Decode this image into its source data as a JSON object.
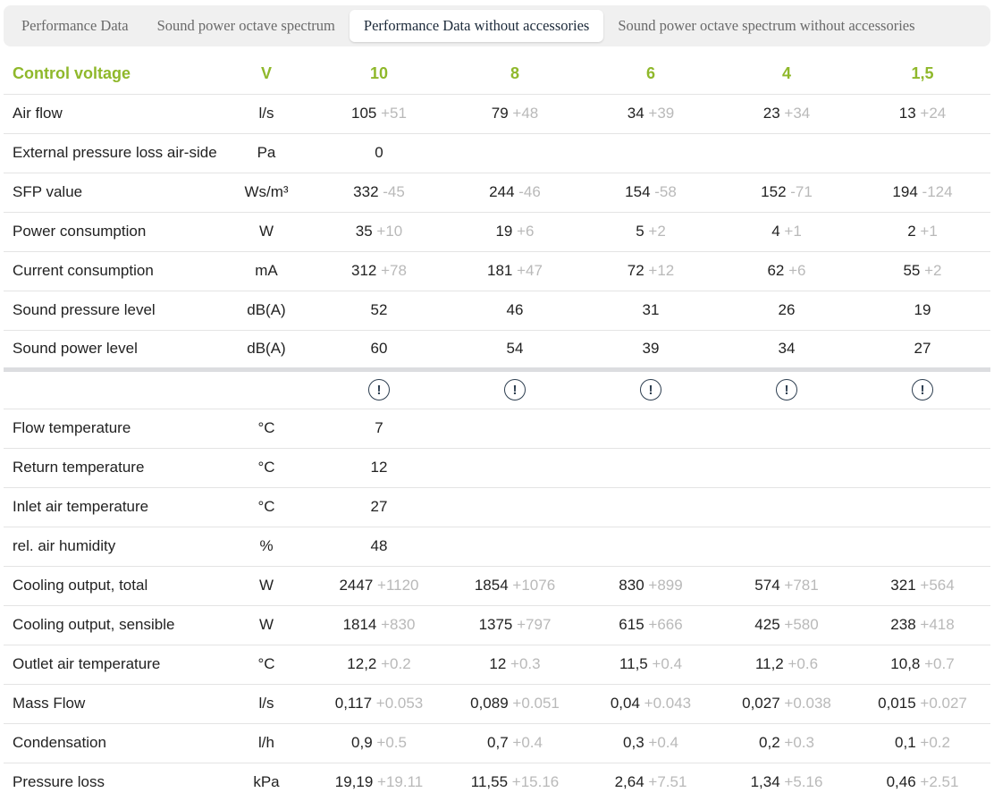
{
  "tabs": [
    {
      "label": "Performance Data",
      "active": false
    },
    {
      "label": "Sound power octave spectrum",
      "active": false
    },
    {
      "label": "Performance Data without accessories",
      "active": true
    },
    {
      "label": "Sound power octave spectrum without accessories",
      "active": false
    }
  ],
  "header": {
    "label": "Control voltage",
    "unit": "V",
    "values": [
      "10",
      "8",
      "6",
      "4",
      "1,5"
    ]
  },
  "group1": [
    {
      "label": "Air flow",
      "unit": "l/s",
      "cells": [
        {
          "v": "105",
          "d": "+51"
        },
        {
          "v": "79",
          "d": "+48"
        },
        {
          "v": "34",
          "d": "+39"
        },
        {
          "v": "23",
          "d": "+34"
        },
        {
          "v": "13",
          "d": "+24"
        }
      ]
    },
    {
      "label": "External pressure loss air-side",
      "unit": "Pa",
      "cells": [
        {
          "v": "0",
          "d": ""
        },
        {
          "v": "",
          "d": ""
        },
        {
          "v": "",
          "d": ""
        },
        {
          "v": "",
          "d": ""
        },
        {
          "v": "",
          "d": ""
        }
      ]
    },
    {
      "label": "SFP value",
      "unit": "Ws/m³",
      "cells": [
        {
          "v": "332",
          "d": "-45"
        },
        {
          "v": "244",
          "d": "-46"
        },
        {
          "v": "154",
          "d": "-58"
        },
        {
          "v": "152",
          "d": "-71"
        },
        {
          "v": "194",
          "d": "-124"
        }
      ]
    },
    {
      "label": "Power consumption",
      "unit": "W",
      "cells": [
        {
          "v": "35",
          "d": "+10"
        },
        {
          "v": "19",
          "d": "+6"
        },
        {
          "v": "5",
          "d": "+2"
        },
        {
          "v": "4",
          "d": "+1"
        },
        {
          "v": "2",
          "d": "+1"
        }
      ]
    },
    {
      "label": "Current consumption",
      "unit": "mA",
      "cells": [
        {
          "v": "312",
          "d": "+78"
        },
        {
          "v": "181",
          "d": "+47"
        },
        {
          "v": "72",
          "d": "+12"
        },
        {
          "v": "62",
          "d": "+6"
        },
        {
          "v": "55",
          "d": "+2"
        }
      ]
    },
    {
      "label": "Sound pressure level",
      "unit": "dB(A)",
      "cells": [
        {
          "v": "52",
          "d": ""
        },
        {
          "v": "46",
          "d": ""
        },
        {
          "v": "31",
          "d": ""
        },
        {
          "v": "26",
          "d": ""
        },
        {
          "v": "19",
          "d": ""
        }
      ]
    },
    {
      "label": "Sound power level",
      "unit": "dB(A)",
      "cells": [
        {
          "v": "60",
          "d": ""
        },
        {
          "v": "54",
          "d": ""
        },
        {
          "v": "39",
          "d": ""
        },
        {
          "v": "34",
          "d": ""
        },
        {
          "v": "27",
          "d": ""
        }
      ]
    }
  ],
  "info_icons": [
    "!",
    "!",
    "!",
    "!",
    "!"
  ],
  "group2": [
    {
      "label": "Flow temperature",
      "unit": "°C",
      "cells": [
        {
          "v": "7",
          "d": ""
        },
        {
          "v": "",
          "d": ""
        },
        {
          "v": "",
          "d": ""
        },
        {
          "v": "",
          "d": ""
        },
        {
          "v": "",
          "d": ""
        }
      ]
    },
    {
      "label": "Return temperature",
      "unit": "°C",
      "cells": [
        {
          "v": "12",
          "d": ""
        },
        {
          "v": "",
          "d": ""
        },
        {
          "v": "",
          "d": ""
        },
        {
          "v": "",
          "d": ""
        },
        {
          "v": "",
          "d": ""
        }
      ]
    },
    {
      "label": "Inlet air temperature",
      "unit": "°C",
      "cells": [
        {
          "v": "27",
          "d": ""
        },
        {
          "v": "",
          "d": ""
        },
        {
          "v": "",
          "d": ""
        },
        {
          "v": "",
          "d": ""
        },
        {
          "v": "",
          "d": ""
        }
      ]
    },
    {
      "label": "rel. air humidity",
      "unit": "%",
      "cells": [
        {
          "v": "48",
          "d": ""
        },
        {
          "v": "",
          "d": ""
        },
        {
          "v": "",
          "d": ""
        },
        {
          "v": "",
          "d": ""
        },
        {
          "v": "",
          "d": ""
        }
      ]
    },
    {
      "label": "Cooling output, total",
      "unit": "W",
      "cells": [
        {
          "v": "2447",
          "d": "+1120"
        },
        {
          "v": "1854",
          "d": "+1076"
        },
        {
          "v": "830",
          "d": "+899"
        },
        {
          "v": "574",
          "d": "+781"
        },
        {
          "v": "321",
          "d": "+564"
        }
      ]
    },
    {
      "label": "Cooling output, sensible",
      "unit": "W",
      "cells": [
        {
          "v": "1814",
          "d": "+830"
        },
        {
          "v": "1375",
          "d": "+797"
        },
        {
          "v": "615",
          "d": "+666"
        },
        {
          "v": "425",
          "d": "+580"
        },
        {
          "v": "238",
          "d": "+418"
        }
      ]
    },
    {
      "label": "Outlet air temperature",
      "unit": "°C",
      "cells": [
        {
          "v": "12,2",
          "d": "+0.2"
        },
        {
          "v": "12",
          "d": "+0.3"
        },
        {
          "v": "11,5",
          "d": "+0.4"
        },
        {
          "v": "11,2",
          "d": "+0.6"
        },
        {
          "v": "10,8",
          "d": "+0.7"
        }
      ]
    },
    {
      "label": "Mass Flow",
      "unit": "l/s",
      "cells": [
        {
          "v": "0,117",
          "d": "+0.053"
        },
        {
          "v": "0,089",
          "d": "+0.051"
        },
        {
          "v": "0,04",
          "d": "+0.043"
        },
        {
          "v": "0,027",
          "d": "+0.038"
        },
        {
          "v": "0,015",
          "d": "+0.027"
        }
      ]
    },
    {
      "label": "Condensation",
      "unit": "l/h",
      "cells": [
        {
          "v": "0,9",
          "d": "+0.5"
        },
        {
          "v": "0,7",
          "d": "+0.4"
        },
        {
          "v": "0,3",
          "d": "+0.4"
        },
        {
          "v": "0,2",
          "d": "+0.3"
        },
        {
          "v": "0,1",
          "d": "+0.2"
        }
      ]
    },
    {
      "label": "Pressure loss",
      "unit": "kPa",
      "cells": [
        {
          "v": "19,19",
          "d": "+19.11"
        },
        {
          "v": "11,55",
          "d": "+15.16"
        },
        {
          "v": "2,64",
          "d": "+7.51"
        },
        {
          "v": "1,34",
          "d": "+5.16"
        },
        {
          "v": "0,46",
          "d": "+2.51"
        }
      ]
    }
  ]
}
